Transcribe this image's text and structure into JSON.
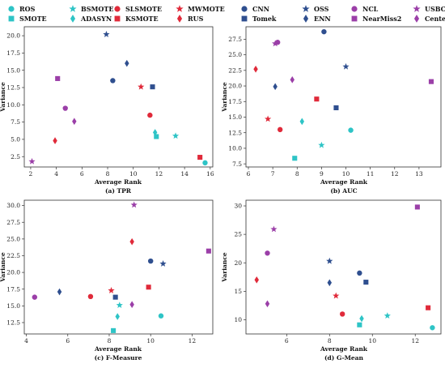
{
  "methods": [
    {
      "name": "ROS",
      "color": "#2ec4c6",
      "marker": "circle"
    },
    {
      "name": "SMOTE",
      "color": "#2ec4c6",
      "marker": "square"
    },
    {
      "name": "BSMOTE",
      "color": "#2ec4c6",
      "marker": "star"
    },
    {
      "name": "ADASYN",
      "color": "#2ec4c6",
      "marker": "diamond"
    },
    {
      "name": "SLSMOTE",
      "color": "#e02a3a",
      "marker": "circle"
    },
    {
      "name": "KSMOTE",
      "color": "#e02a3a",
      "marker": "square"
    },
    {
      "name": "MWMOTE",
      "color": "#e02a3a",
      "marker": "star"
    },
    {
      "name": "RUS",
      "color": "#e02a3a",
      "marker": "diamond"
    },
    {
      "name": "CNN",
      "color": "#2f4f8f",
      "marker": "circle"
    },
    {
      "name": "Tomek",
      "color": "#2f4f8f",
      "marker": "square"
    },
    {
      "name": "OSS",
      "color": "#2f4f8f",
      "marker": "star"
    },
    {
      "name": "ENN",
      "color": "#2f4f8f",
      "marker": "diamond"
    },
    {
      "name": "NCL",
      "color": "#9b3fa8",
      "marker": "circle"
    },
    {
      "name": "NearMiss2",
      "color": "#9b3fa8",
      "marker": "square"
    },
    {
      "name": "USBC",
      "color": "#9b3fa8",
      "marker": "star"
    },
    {
      "name": "CentersNN",
      "color": "#9b3fa8",
      "marker": "diamond"
    }
  ],
  "chart_data": [
    {
      "type": "scatter",
      "caption": "(a) TPR",
      "xlabel": "Average Rank",
      "ylabel": "Variance",
      "xlim": [
        1.5,
        16.2
      ],
      "ylim": [
        1.0,
        21.3
      ],
      "xticks": [
        2,
        4,
        6,
        8,
        10,
        12,
        14,
        16
      ],
      "xtick_labels": [
        "2",
        "4",
        "6",
        "8",
        "10",
        "12",
        "14",
        "16"
      ],
      "yticks": [
        2.5,
        5.0,
        7.5,
        10.0,
        12.5,
        15.0,
        17.5,
        20.0
      ],
      "ytick_labels": [
        "2.5",
        "5.0",
        "7.5",
        "10.0",
        "12.5",
        "15.0",
        "17.5",
        "20.0"
      ],
      "points": [
        {
          "method": "ROS",
          "x": 15.6,
          "y": 1.6
        },
        {
          "method": "SMOTE",
          "x": 11.8,
          "y": 5.4
        },
        {
          "method": "BSMOTE",
          "x": 13.3,
          "y": 5.5
        },
        {
          "method": "ADASYN",
          "x": 11.7,
          "y": 6.0
        },
        {
          "method": "SLSMOTE",
          "x": 11.3,
          "y": 8.5
        },
        {
          "method": "KSMOTE",
          "x": 15.2,
          "y": 2.4
        },
        {
          "method": "MWMOTE",
          "x": 10.6,
          "y": 12.6
        },
        {
          "method": "RUS",
          "x": 3.9,
          "y": 4.8
        },
        {
          "method": "CNN",
          "x": 8.4,
          "y": 13.5
        },
        {
          "method": "Tomek",
          "x": 11.5,
          "y": 12.6
        },
        {
          "method": "OSS",
          "x": 7.9,
          "y": 20.2
        },
        {
          "method": "ENN",
          "x": 9.5,
          "y": 16.0
        },
        {
          "method": "NCL",
          "x": 4.7,
          "y": 9.5
        },
        {
          "method": "NearMiss2",
          "x": 4.1,
          "y": 13.8
        },
        {
          "method": "USBC",
          "x": 2.1,
          "y": 1.8
        },
        {
          "method": "CentersNN",
          "x": 5.4,
          "y": 7.6
        }
      ]
    },
    {
      "type": "scatter",
      "caption": "(b) AUC",
      "xlabel": "Average Rank",
      "ylabel": "Variance",
      "xlim": [
        5.9,
        13.9
      ],
      "ylim": [
        7.0,
        29.5
      ],
      "xticks": [
        6,
        7,
        8,
        9,
        10,
        11,
        12,
        13
      ],
      "xtick_labels": [
        "6",
        "7",
        "8",
        "9",
        "10",
        "11",
        "12",
        "13"
      ],
      "yticks": [
        7.5,
        10.0,
        12.5,
        15.0,
        17.5,
        20.0,
        22.5,
        25.0,
        27.5
      ],
      "ytick_labels": [
        "7.5",
        "10.0",
        "12.5",
        "15.0",
        "17.5",
        "20.0",
        "22.5",
        "25.0",
        "27.5"
      ],
      "points": [
        {
          "method": "ROS",
          "x": 10.2,
          "y": 12.9
        },
        {
          "method": "SMOTE",
          "x": 7.9,
          "y": 8.4
        },
        {
          "method": "BSMOTE",
          "x": 9.0,
          "y": 10.5
        },
        {
          "method": "ADASYN",
          "x": 8.2,
          "y": 14.3
        },
        {
          "method": "SLSMOTE",
          "x": 7.3,
          "y": 13.0
        },
        {
          "method": "KSMOTE",
          "x": 8.8,
          "y": 17.9
        },
        {
          "method": "MWMOTE",
          "x": 6.8,
          "y": 14.7
        },
        {
          "method": "RUS",
          "x": 6.3,
          "y": 22.7
        },
        {
          "method": "CNN",
          "x": 9.1,
          "y": 28.7
        },
        {
          "method": "Tomek",
          "x": 9.6,
          "y": 16.5
        },
        {
          "method": "OSS",
          "x": 10.0,
          "y": 23.1
        },
        {
          "method": "ENN",
          "x": 7.1,
          "y": 19.9
        },
        {
          "method": "NCL",
          "x": 7.2,
          "y": 27.0
        },
        {
          "method": "NearMiss2",
          "x": 13.5,
          "y": 20.7
        },
        {
          "method": "USBC",
          "x": 7.1,
          "y": 26.8
        },
        {
          "method": "CentersNN",
          "x": 7.8,
          "y": 21.0
        }
      ]
    },
    {
      "type": "scatter",
      "caption": "(c) F-Measure",
      "xlabel": "Average Rank",
      "ylabel": "Variance",
      "xlim": [
        3.9,
        13.0
      ],
      "ylim": [
        10.8,
        30.8
      ],
      "xticks": [
        4,
        6,
        8,
        10,
        12
      ],
      "xtick_labels": [
        "4",
        "6",
        "8",
        "10",
        "12"
      ],
      "yticks": [
        12.5,
        15.0,
        17.5,
        20.0,
        22.5,
        25.0,
        27.5,
        30.0
      ],
      "ytick_labels": [
        "12.5",
        "15.0",
        "17.5",
        "20.0",
        "22.5",
        "25.0",
        "27.5",
        "30.0"
      ],
      "points": [
        {
          "method": "ROS",
          "x": 10.5,
          "y": 13.5
        },
        {
          "method": "SMOTE",
          "x": 8.2,
          "y": 11.3
        },
        {
          "method": "BSMOTE",
          "x": 8.5,
          "y": 15.1
        },
        {
          "method": "ADASYN",
          "x": 8.4,
          "y": 13.4
        },
        {
          "method": "SLSMOTE",
          "x": 7.1,
          "y": 16.4
        },
        {
          "method": "KSMOTE",
          "x": 9.9,
          "y": 17.8
        },
        {
          "method": "MWMOTE",
          "x": 8.1,
          "y": 17.3
        },
        {
          "method": "RUS",
          "x": 9.1,
          "y": 24.6
        },
        {
          "method": "CNN",
          "x": 10.0,
          "y": 21.7
        },
        {
          "method": "Tomek",
          "x": 8.3,
          "y": 16.3
        },
        {
          "method": "OSS",
          "x": 10.6,
          "y": 21.3
        },
        {
          "method": "ENN",
          "x": 5.6,
          "y": 17.1
        },
        {
          "method": "NCL",
          "x": 4.4,
          "y": 16.3
        },
        {
          "method": "NearMiss2",
          "x": 12.8,
          "y": 23.2
        },
        {
          "method": "USBC",
          "x": 9.2,
          "y": 30.1
        },
        {
          "method": "CentersNN",
          "x": 9.1,
          "y": 15.2
        }
      ]
    },
    {
      "type": "scatter",
      "caption": "(d) G-Mean",
      "xlabel": "Average Rank",
      "ylabel": "Variance",
      "xlim": [
        4.1,
        13.2
      ],
      "ylim": [
        7.5,
        31.0
      ],
      "xticks": [
        6,
        8,
        10,
        12
      ],
      "xtick_labels": [
        "6",
        "8",
        "10",
        "12"
      ],
      "yticks": [
        10,
        15,
        20,
        25,
        30
      ],
      "ytick_labels": [
        "10",
        "15",
        "20",
        "25",
        "30"
      ],
      "points": [
        {
          "method": "ROS",
          "x": 12.8,
          "y": 8.6
        },
        {
          "method": "SMOTE",
          "x": 9.4,
          "y": 9.1
        },
        {
          "method": "BSMOTE",
          "x": 10.7,
          "y": 10.7
        },
        {
          "method": "ADASYN",
          "x": 9.5,
          "y": 10.2
        },
        {
          "method": "SLSMOTE",
          "x": 8.6,
          "y": 11.0
        },
        {
          "method": "KSMOTE",
          "x": 12.6,
          "y": 12.1
        },
        {
          "method": "MWMOTE",
          "x": 8.3,
          "y": 14.2
        },
        {
          "method": "RUS",
          "x": 4.6,
          "y": 17.0
        },
        {
          "method": "CNN",
          "x": 9.4,
          "y": 18.2
        },
        {
          "method": "Tomek",
          "x": 9.7,
          "y": 16.6
        },
        {
          "method": "OSS",
          "x": 8.0,
          "y": 20.3
        },
        {
          "method": "ENN",
          "x": 8.0,
          "y": 16.5
        },
        {
          "method": "NCL",
          "x": 5.1,
          "y": 21.7
        },
        {
          "method": "NearMiss2",
          "x": 12.1,
          "y": 29.8
        },
        {
          "method": "USBC",
          "x": 5.4,
          "y": 25.9
        },
        {
          "method": "CentersNN",
          "x": 5.1,
          "y": 12.8
        }
      ]
    }
  ]
}
